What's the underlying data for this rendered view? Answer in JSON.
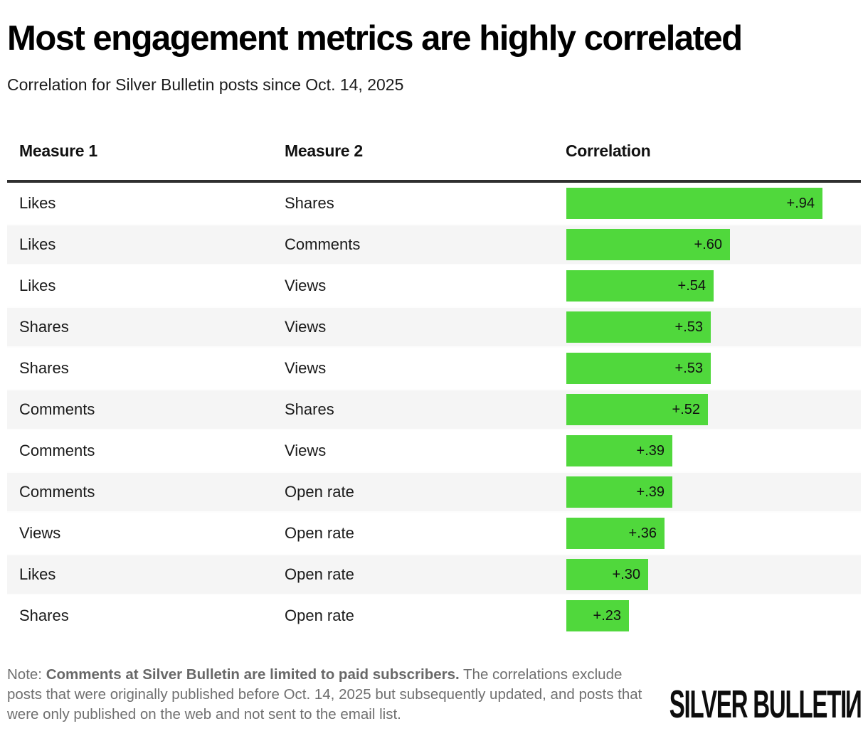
{
  "header": {
    "title": "Most engagement metrics are highly correlated",
    "subtitle": "Correlation for Silver Bulletin posts since Oct. 14, 2025"
  },
  "table": {
    "columns": [
      "Measure 1",
      "Measure 2",
      "Correlation"
    ],
    "rows": [
      {
        "measure1": "Likes",
        "measure2": "Shares",
        "value": 0.94,
        "label": "+.94"
      },
      {
        "measure1": "Likes",
        "measure2": "Comments",
        "value": 0.6,
        "label": "+.60"
      },
      {
        "measure1": "Likes",
        "measure2": "Views",
        "value": 0.54,
        "label": "+.54"
      },
      {
        "measure1": "Shares",
        "measure2": "Views",
        "value": 0.53,
        "label": "+.53"
      },
      {
        "measure1": "Shares",
        "measure2": "Views",
        "value": 0.53,
        "label": "+.53"
      },
      {
        "measure1": "Comments",
        "measure2": "Shares",
        "value": 0.52,
        "label": "+.52"
      },
      {
        "measure1": "Comments",
        "measure2": "Views",
        "value": 0.39,
        "label": "+.39"
      },
      {
        "measure1": "Comments",
        "measure2": "Open rate",
        "value": 0.39,
        "label": "+.39"
      },
      {
        "measure1": "Views",
        "measure2": "Open rate",
        "value": 0.36,
        "label": "+.36"
      },
      {
        "measure1": "Likes",
        "measure2": "Open rate",
        "value": 0.3,
        "label": "+.30"
      },
      {
        "measure1": "Shares",
        "measure2": "Open rate",
        "value": 0.23,
        "label": "+.23"
      }
    ]
  },
  "note": {
    "prefix": "Note: ",
    "bold": "Comments at Silver Bulletin are limited to paid subscribers.",
    "rest": " The correlations exclude posts that were originally published before Oct. 14, 2025 but subsequently updated, and posts that were only published on the web and not sent to the email list."
  },
  "footer": {
    "logo_main": "SILVER BULLETI",
    "logo_n": "N"
  },
  "colors": {
    "bar_green": "#50d83c",
    "row_alt": "#f5f5f5",
    "header_rule": "#2f2f2f",
    "note_gray": "#6f6f6f"
  },
  "chart_data": {
    "type": "bar",
    "title": "Most engagement metrics are highly correlated",
    "subtitle": "Correlation for Silver Bulletin posts since Oct. 14, 2025",
    "columns": [
      "Measure 1",
      "Measure 2",
      "Correlation"
    ],
    "categories": [
      "Likes / Shares",
      "Likes / Comments",
      "Likes / Views",
      "Shares / Views",
      "Shares / Views",
      "Comments / Shares",
      "Comments / Views",
      "Comments / Open rate",
      "Views / Open rate",
      "Likes / Open rate",
      "Shares / Open rate"
    ],
    "values": [
      0.94,
      0.6,
      0.54,
      0.53,
      0.53,
      0.52,
      0.39,
      0.39,
      0.36,
      0.3,
      0.23
    ],
    "value_labels": [
      "+.94",
      "+.60",
      "+.54",
      "+.53",
      "+.53",
      "+.52",
      "+.39",
      "+.39",
      "+.36",
      "+.30",
      "+.23"
    ],
    "xlim": [
      0,
      1.08
    ],
    "orientation": "horizontal",
    "bar_color": "#50d83c",
    "grid": false,
    "legend": false,
    "note": "Note: Comments at Silver Bulletin are limited to paid subscribers. The correlations exclude posts that were originally published before Oct. 14, 2025 but subsequently updated, and posts that were only published on the web and not sent to the email list.",
    "source_logo": "SILVER BULLETIN"
  }
}
